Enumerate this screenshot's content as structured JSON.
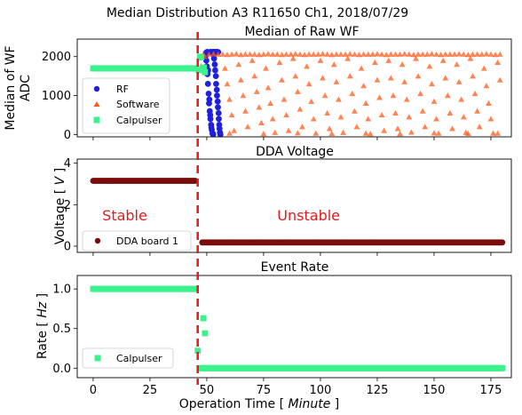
{
  "figure": {
    "suptitle": "Median Distribution A3 R11650 Ch1, 2018/07/29",
    "xlabel": "Operation Time [ Minute ]",
    "xlabel_main": "Operation Time [ ",
    "xlabel_italic": "Minute",
    "xlabel_end": " ]",
    "xlim": [
      -7,
      184
    ],
    "xticks": [
      0,
      25,
      50,
      75,
      100,
      125,
      150,
      175
    ],
    "cut_line_x": 46,
    "cut_line_color": "#e31a1c"
  },
  "chart_data": [
    {
      "type": "scatter",
      "title": "Median of Raw WF",
      "ylabel_line1": "Median of WF",
      "ylabel_line2": "ADC",
      "ylim": [
        -60,
        2450
      ],
      "yticks": [
        0,
        1000,
        2000
      ],
      "legend_position": "center-left",
      "series": [
        {
          "name": "RF",
          "marker": "circle",
          "color": "#1f1fe0",
          "points": [
            [
              49.5,
              2020
            ],
            [
              49.8,
              1900
            ],
            [
              50.0,
              1750
            ],
            [
              50.3,
              1550
            ],
            [
              50.5,
              1300
            ],
            [
              50.8,
              1050
            ],
            [
              51.0,
              800
            ],
            [
              51.3,
              600
            ],
            [
              51.6,
              400
            ],
            [
              51.9,
              250
            ],
            [
              52.2,
              120
            ],
            [
              52.5,
              30
            ],
            [
              52.8,
              0
            ],
            [
              49.7,
              2100
            ],
            [
              50.2,
              2120
            ],
            [
              50.6,
              1650
            ],
            [
              51.1,
              900
            ],
            [
              51.5,
              500
            ],
            [
              52.0,
              180
            ],
            [
              52.7,
              20
            ],
            [
              50.9,
              2110
            ],
            [
              51.4,
              2115
            ],
            [
              51.8,
              2120
            ],
            [
              52.3,
              2118
            ],
            [
              52.9,
              2120
            ],
            [
              53.4,
              2115
            ],
            [
              53.8,
              2118
            ],
            [
              54.2,
              2122
            ],
            [
              54.6,
              2120
            ],
            [
              55.0,
              2117
            ],
            [
              53.0,
              2050
            ],
            [
              53.5,
              1800
            ],
            [
              54.0,
              1500
            ],
            [
              54.4,
              1150
            ],
            [
              54.8,
              850
            ],
            [
              55.2,
              550
            ],
            [
              55.5,
              250
            ],
            [
              55.8,
              50
            ],
            [
              56.0,
              0
            ],
            [
              53.2,
              1950
            ],
            [
              53.7,
              1650
            ],
            [
              54.1,
              1300
            ],
            [
              54.5,
              1000
            ],
            [
              54.9,
              700
            ],
            [
              55.3,
              400
            ],
            [
              55.6,
              150
            ]
          ]
        },
        {
          "name": "Software",
          "marker": "triangle",
          "color": "#ff5a1a",
          "points": [
            [
              0,
              1690
            ],
            [
              8,
              1690
            ],
            [
              16,
              1690
            ],
            [
              24,
              1690
            ],
            [
              32,
              1690
            ],
            [
              40,
              1690
            ],
            [
              45,
              1700
            ],
            [
              47.5,
              1750
            ],
            [
              48.5,
              2060
            ],
            [
              49,
              2000
            ],
            [
              51,
              2060
            ],
            [
              53,
              2070
            ],
            [
              55,
              2060
            ],
            [
              57,
              2060
            ],
            [
              59,
              2050
            ],
            [
              61,
              2060
            ],
            [
              63,
              2070
            ],
            [
              65,
              2050
            ],
            [
              67,
              2060
            ],
            [
              69,
              2060
            ],
            [
              71,
              2060
            ],
            [
              73,
              2050
            ],
            [
              75,
              2060
            ],
            [
              77,
              2070
            ],
            [
              79,
              2060
            ],
            [
              81,
              2060
            ],
            [
              83,
              2050
            ],
            [
              85,
              2060
            ],
            [
              87,
              2060
            ],
            [
              89,
              2070
            ],
            [
              91,
              2060
            ],
            [
              93,
              2050
            ],
            [
              95,
              2060
            ],
            [
              97,
              2060
            ],
            [
              99,
              2060
            ],
            [
              101,
              2070
            ],
            [
              103,
              2060
            ],
            [
              105,
              2050
            ],
            [
              107,
              2060
            ],
            [
              109,
              2060
            ],
            [
              111,
              2060
            ],
            [
              113,
              2070
            ],
            [
              115,
              2060
            ],
            [
              117,
              2050
            ],
            [
              119,
              2060
            ],
            [
              121,
              2060
            ],
            [
              123,
              2060
            ],
            [
              125,
              2070
            ],
            [
              127,
              2060
            ],
            [
              129,
              2050
            ],
            [
              131,
              2060
            ],
            [
              133,
              2060
            ],
            [
              135,
              2060
            ],
            [
              137,
              2070
            ],
            [
              139,
              2060
            ],
            [
              141,
              2050
            ],
            [
              143,
              2060
            ],
            [
              145,
              2060
            ],
            [
              147,
              2060
            ],
            [
              149,
              2070
            ],
            [
              151,
              2060
            ],
            [
              153,
              2050
            ],
            [
              155,
              2060
            ],
            [
              157,
              2060
            ],
            [
              159,
              2060
            ],
            [
              161,
              2070
            ],
            [
              163,
              2060
            ],
            [
              165,
              2050
            ],
            [
              167,
              2060
            ],
            [
              169,
              2060
            ],
            [
              171,
              2060
            ],
            [
              173,
              2070
            ],
            [
              175,
              2060
            ],
            [
              177,
              2050
            ],
            [
              179,
              2060
            ],
            [
              58,
              1700
            ],
            [
              59,
              1300
            ],
            [
              60,
              900
            ],
            [
              61,
              500
            ],
            [
              62,
              100
            ],
            [
              64,
              1800
            ],
            [
              65,
              1400
            ],
            [
              66,
              1000
            ],
            [
              67,
              600
            ],
            [
              68,
              200
            ],
            [
              70,
              1900
            ],
            [
              71,
              1500
            ],
            [
              72,
              1100
            ],
            [
              73,
              700
            ],
            [
              74,
              300
            ],
            [
              76,
              1700
            ],
            [
              77,
              1200
            ],
            [
              78,
              800
            ],
            [
              79,
              400
            ],
            [
              80,
              50
            ],
            [
              82,
              1850
            ],
            [
              83,
              1400
            ],
            [
              84,
              900
            ],
            [
              85,
              500
            ],
            [
              86,
              100
            ],
            [
              88,
              1950
            ],
            [
              89,
              1500
            ],
            [
              90,
              1100
            ],
            [
              91,
              650
            ],
            [
              92,
              200
            ],
            [
              94,
              1750
            ],
            [
              95,
              1300
            ],
            [
              96,
              850
            ],
            [
              97,
              400
            ],
            [
              98,
              30
            ],
            [
              100,
              1900
            ],
            [
              101,
              1450
            ],
            [
              102,
              1000
            ],
            [
              103,
              550
            ],
            [
              104,
              150
            ],
            [
              106,
              1800
            ],
            [
              107,
              1350
            ],
            [
              108,
              900
            ],
            [
              109,
              450
            ],
            [
              110,
              50
            ],
            [
              112,
              1950
            ],
            [
              113,
              1500
            ],
            [
              114,
              1050
            ],
            [
              115,
              600
            ],
            [
              116,
              200
            ],
            [
              118,
              1700
            ],
            [
              119,
              1250
            ],
            [
              120,
              800
            ],
            [
              121,
              400
            ],
            [
              122,
              20
            ],
            [
              124,
              1850
            ],
            [
              125,
              1400
            ],
            [
              126,
              950
            ],
            [
              127,
              500
            ],
            [
              128,
              100
            ],
            [
              130,
              1900
            ],
            [
              131,
              1450
            ],
            [
              132,
              1000
            ],
            [
              133,
              550
            ],
            [
              134,
              150
            ],
            [
              136,
              1800
            ],
            [
              137,
              1350
            ],
            [
              138,
              900
            ],
            [
              139,
              450
            ],
            [
              140,
              60
            ],
            [
              142,
              1950
            ],
            [
              143,
              1500
            ],
            [
              144,
              1050
            ],
            [
              145,
              600
            ],
            [
              146,
              200
            ],
            [
              148,
              1750
            ],
            [
              149,
              1300
            ],
            [
              150,
              850
            ],
            [
              151,
              400
            ],
            [
              152,
              30
            ],
            [
              154,
              1900
            ],
            [
              155,
              1450
            ],
            [
              156,
              1000
            ],
            [
              157,
              550
            ],
            [
              158,
              150
            ],
            [
              160,
              1800
            ],
            [
              161,
              1350
            ],
            [
              162,
              900
            ],
            [
              163,
              450
            ],
            [
              164,
              50
            ],
            [
              166,
              1950
            ],
            [
              167,
              1500
            ],
            [
              168,
              1050
            ],
            [
              169,
              600
            ],
            [
              170,
              200
            ],
            [
              172,
              1700
            ],
            [
              173,
              1250
            ],
            [
              174,
              800
            ],
            [
              175,
              400
            ],
            [
              176,
              30
            ],
            [
              178,
              1850
            ],
            [
              179,
              1400
            ],
            [
              60,
              30
            ],
            [
              75,
              20
            ],
            [
              90,
              40
            ],
            [
              105,
              25
            ],
            [
              120,
              30
            ],
            [
              135,
              20
            ],
            [
              150,
              35
            ],
            [
              165,
              25
            ],
            [
              178,
              30
            ]
          ]
        },
        {
          "name": "Calpulser",
          "marker": "square",
          "color": "#3cf28c",
          "x_range": [
            0,
            45
          ],
          "y": 1700,
          "extra_points": [
            [
              47,
              2000
            ],
            [
              47.5,
              1980
            ],
            [
              48,
              1700
            ],
            [
              48.4,
              1650
            ],
            [
              48.7,
              1720
            ],
            [
              49.2,
              1600
            ],
            [
              46.5,
              1650
            ]
          ]
        }
      ]
    },
    {
      "type": "scatter",
      "title": "DDA Voltage",
      "ylabel": "Voltage [ V ]",
      "ylabel_main": "Voltage [ ",
      "ylabel_italic": "V",
      "ylabel_end": " ]",
      "ylim": [
        -0.3,
        4.2
      ],
      "yticks": [
        0,
        2,
        4
      ],
      "legend_position": "lower-left",
      "annotations": [
        {
          "text": "Stable",
          "x": 4,
          "y": 1.5
        },
        {
          "text": "Unstable",
          "x": 81,
          "y": 1.5
        }
      ],
      "series": [
        {
          "name": "DDA board 1",
          "marker": "circle",
          "color": "#7a0c0c",
          "segments": [
            {
              "x_range": [
                0,
                45
              ],
              "y": 3.15
            },
            {
              "x_range": [
                48,
                180
              ],
              "y": 0.18
            }
          ]
        }
      ]
    },
    {
      "type": "scatter",
      "title": "Event Rate",
      "ylabel": "Rate [ Hz ]",
      "ylabel_main": "Rate [ ",
      "ylabel_italic": "Hz",
      "ylabel_end": " ]",
      "ylim": [
        -0.12,
        1.17
      ],
      "yticks": [
        0.0,
        0.5,
        1.0
      ],
      "ytick_labels": [
        "0.0",
        "0.5",
        "1.0"
      ],
      "legend_position": "lower-left",
      "series": [
        {
          "name": "Calpulser",
          "marker": "square",
          "color": "#3cf28c",
          "segments": [
            {
              "x_range": [
                0,
                44
              ],
              "y": 1.0
            },
            {
              "x_range": [
                48,
                180
              ],
              "y": 0.0
            }
          ],
          "extra_points": [
            [
              45,
              1.0
            ],
            [
              46,
              0.22
            ],
            [
              47,
              0.0
            ],
            [
              48.5,
              0.63
            ],
            [
              49.2,
              0.44
            ]
          ]
        }
      ]
    }
  ]
}
